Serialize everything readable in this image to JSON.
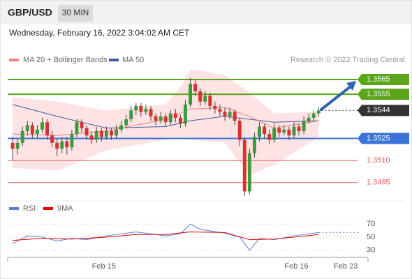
{
  "chart_data": {
    "type": "candlestick",
    "title": "GBP/USD",
    "timeframe": "30 MIN",
    "subtitle": "Wednesday, February 16, 2022 3:04:02 AM CET",
    "credit": "Research © 2022 Trading Central",
    "up_color": "#3c9a3c",
    "down_color": "#d93030",
    "xlim": [
      -1,
      72
    ],
    "ylim": [
      1.3484,
      1.3574
    ],
    "xlabels": [
      {
        "at": 18.5,
        "label": "Feb 15"
      },
      {
        "at": 57.5,
        "label": "Feb 16"
      },
      {
        "at": 67.5,
        "label": "Feb 23"
      }
    ],
    "open": [
      1.3522,
      1.3518,
      1.3522,
      1.353,
      1.3534,
      1.3528,
      1.3531,
      1.3536,
      1.3527,
      1.3522,
      1.3518,
      1.3523,
      1.3519,
      1.3528,
      1.3536,
      1.3532,
      1.3527,
      1.3524,
      1.353,
      1.3526,
      1.353,
      1.3527,
      1.3531,
      1.3534,
      1.3538,
      1.3544,
      1.3547,
      1.3543,
      1.3545,
      1.354,
      1.3537,
      1.354,
      1.3536,
      1.3542,
      1.3539,
      1.3535,
      1.3548,
      1.3562,
      1.3557,
      1.355,
      1.3554,
      1.3547,
      1.3545,
      1.3543,
      1.354,
      1.3543,
      1.3537,
      1.3524,
      1.3489,
      1.3515,
      1.3526,
      1.3533,
      1.3528,
      1.3524,
      1.3532,
      1.3529,
      1.3531,
      1.3527,
      1.3533,
      1.353,
      1.3537,
      1.3539,
      1.3542
    ],
    "close": [
      1.3518,
      1.3522,
      1.353,
      1.3534,
      1.3528,
      1.3531,
      1.3536,
      1.3527,
      1.3522,
      1.3518,
      1.3523,
      1.3519,
      1.3528,
      1.3536,
      1.3532,
      1.3527,
      1.3524,
      1.353,
      1.3526,
      1.353,
      1.3527,
      1.3531,
      1.3534,
      1.3538,
      1.3544,
      1.3547,
      1.3543,
      1.3545,
      1.354,
      1.3537,
      1.354,
      1.3536,
      1.3542,
      1.3539,
      1.3535,
      1.3548,
      1.3562,
      1.3557,
      1.355,
      1.3554,
      1.3547,
      1.3545,
      1.3543,
      1.354,
      1.3543,
      1.3537,
      1.3524,
      1.3489,
      1.3515,
      1.3526,
      1.3533,
      1.3528,
      1.3524,
      1.3532,
      1.3529,
      1.3531,
      1.3527,
      1.3533,
      1.353,
      1.3537,
      1.3539,
      1.3542,
      1.3544
    ],
    "high": [
      1.3526,
      1.3525,
      1.3533,
      1.3537,
      1.3536,
      1.3534,
      1.3539,
      1.3538,
      1.353,
      1.3525,
      1.3526,
      1.3526,
      1.3531,
      1.3538,
      1.3538,
      1.3534,
      1.353,
      1.3533,
      1.3532,
      1.3533,
      1.3532,
      1.3534,
      1.3537,
      1.3541,
      1.3547,
      1.3549,
      1.3549,
      1.3548,
      1.3547,
      1.3542,
      1.3543,
      1.3542,
      1.3544,
      1.3545,
      1.3541,
      1.3551,
      1.3566,
      1.3565,
      1.3559,
      1.3557,
      1.3556,
      1.355,
      1.3548,
      1.3546,
      1.3546,
      1.3545,
      1.3539,
      1.3526,
      1.3518,
      1.3529,
      1.3536,
      1.3535,
      1.3531,
      1.3535,
      1.3534,
      1.3534,
      1.3533,
      1.3536,
      1.3535,
      1.354,
      1.3542,
      1.3544,
      1.3546
    ],
    "low": [
      1.351,
      1.3514,
      1.352,
      1.3527,
      1.3525,
      1.3525,
      1.3529,
      1.3524,
      1.3519,
      1.3513,
      1.3515,
      1.3514,
      1.3517,
      1.3526,
      1.3529,
      1.3524,
      1.3521,
      1.3522,
      1.3523,
      1.3524,
      1.3524,
      1.3525,
      1.3529,
      1.3532,
      1.3536,
      1.3541,
      1.354,
      1.3541,
      1.3537,
      1.3534,
      1.3535,
      1.3533,
      1.3534,
      1.3536,
      1.3532,
      1.3533,
      1.3546,
      1.3554,
      1.3547,
      1.3548,
      1.3544,
      1.3542,
      1.354,
      1.3537,
      1.3538,
      1.3534,
      1.352,
      1.3486,
      1.3487,
      1.3512,
      1.3523,
      1.3525,
      1.3521,
      1.3522,
      1.3526,
      1.3527,
      1.3524,
      1.3525,
      1.3527,
      1.3528,
      1.3535,
      1.3537,
      1.354
    ],
    "ma20": {
      "name": "MA 20 + Bollinger Bands",
      "color": "#f4827c",
      "band_color": "#fde3e3",
      "x": [
        0,
        9,
        19,
        31,
        34,
        36,
        43,
        48,
        53,
        62
      ],
      "values": [
        1.3528,
        1.3527,
        1.353,
        1.3538,
        1.3542,
        1.3545,
        1.3546,
        1.354,
        1.3532,
        1.3537
      ],
      "upper": [
        1.3553,
        1.355,
        1.3544,
        1.3548,
        1.356,
        1.3572,
        1.3568,
        1.3556,
        1.3542,
        1.3543
      ],
      "lower": [
        1.3505,
        1.3503,
        1.3517,
        1.3524,
        1.3525,
        1.3524,
        1.3522,
        1.35,
        1.3507,
        1.3526
      ]
    },
    "ma50": {
      "name": "MA 50",
      "color": "#3d5e9e",
      "x": [
        0,
        9,
        19,
        31,
        36,
        43,
        48,
        53,
        62
      ],
      "values": [
        1.3548,
        1.354,
        1.3532,
        1.3533,
        1.3537,
        1.354,
        1.3538,
        1.3536,
        1.3537
      ]
    },
    "levels": [
      {
        "value": 1.3565,
        "color": "#5aa51a",
        "style": "tag"
      },
      {
        "value": 1.3555,
        "color": "#5aa51a",
        "style": "tag"
      },
      {
        "value": 1.3544,
        "color": "#333333",
        "style": "current"
      },
      {
        "value": 1.3525,
        "color": "#3b73d9",
        "style": "tag"
      },
      {
        "value": 1.351,
        "label": "1.3510",
        "color": "#e05a5a",
        "style": "text"
      },
      {
        "value": 1.3495,
        "color": "#e05a5a",
        "style": "text"
      }
    ],
    "rsi": {
      "ylim": [
        20,
        82
      ],
      "yticks": [
        70,
        50,
        30
      ],
      "series": [
        {
          "name": "RSI",
          "color": "#5b7fd6",
          "x": [
            0,
            3,
            6,
            9,
            12,
            15,
            19,
            25,
            31,
            34,
            36,
            38,
            43,
            46,
            48,
            50,
            53,
            57,
            62
          ],
          "values": [
            40,
            52,
            50,
            44,
            48,
            46,
            52,
            58,
            52,
            55,
            70,
            62,
            56,
            50,
            30,
            48,
            46,
            52,
            57
          ]
        },
        {
          "name": "9MA",
          "color": "#e00000",
          "x": [
            0,
            6,
            12,
            19,
            25,
            31,
            36,
            43,
            48,
            53,
            57,
            62
          ],
          "values": [
            45,
            48,
            47,
            50,
            54,
            54,
            58,
            57,
            46,
            47,
            50,
            54
          ]
        }
      ]
    }
  }
}
